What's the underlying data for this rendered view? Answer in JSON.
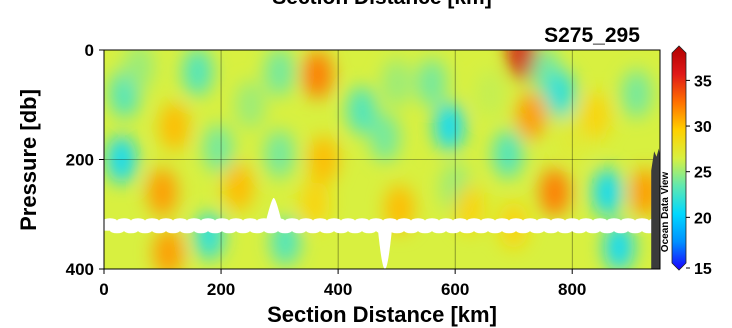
{
  "chart_data": {
    "type": "heatmap",
    "title_top": "Section Distance [km]",
    "title": "S275_295",
    "xlabel": "Section Distance [km]",
    "ylabel": "Pressure [db]",
    "xlim": [
      0,
      950
    ],
    "ylim": [
      0,
      400
    ],
    "y_inverted": true,
    "xticks": [
      0,
      200,
      400,
      600,
      800
    ],
    "yticks": [
      0,
      200,
      400
    ],
    "grid": true,
    "colorbar": {
      "min": 15,
      "max": 38,
      "ticks": [
        15,
        20,
        25,
        30,
        35
      ],
      "colors": [
        "#1a00ff",
        "#0090ff",
        "#00d8ff",
        "#60e8b0",
        "#d8f040",
        "#ffd000",
        "#ff7000",
        "#e01818",
        "#b00000"
      ]
    },
    "watermark": "Ocean Data View",
    "background_value": 26.5,
    "features": [
      {
        "x": 30,
        "p": 200,
        "value": 21
      },
      {
        "x": 35,
        "p": 80,
        "value": 23
      },
      {
        "x": 60,
        "p": 30,
        "value": 25
      },
      {
        "x": 100,
        "p": 260,
        "value": 31
      },
      {
        "x": 110,
        "p": 370,
        "value": 31
      },
      {
        "x": 120,
        "p": 140,
        "value": 30
      },
      {
        "x": 160,
        "p": 40,
        "value": 23
      },
      {
        "x": 180,
        "p": 340,
        "value": 22
      },
      {
        "x": 195,
        "p": 180,
        "value": 24
      },
      {
        "x": 230,
        "p": 250,
        "value": 30
      },
      {
        "x": 250,
        "p": 100,
        "value": 25
      },
      {
        "x": 300,
        "p": 190,
        "value": 24
      },
      {
        "x": 300,
        "p": 40,
        "value": 24
      },
      {
        "x": 310,
        "p": 350,
        "value": 23
      },
      {
        "x": 365,
        "p": 45,
        "value": 32
      },
      {
        "x": 360,
        "p": 280,
        "value": 29
      },
      {
        "x": 375,
        "p": 200,
        "value": 30
      },
      {
        "x": 440,
        "p": 110,
        "value": 23
      },
      {
        "x": 480,
        "p": 160,
        "value": 24
      },
      {
        "x": 500,
        "p": 60,
        "value": 25
      },
      {
        "x": 505,
        "p": 290,
        "value": 30
      },
      {
        "x": 560,
        "p": 60,
        "value": 24
      },
      {
        "x": 590,
        "p": 140,
        "value": 21
      },
      {
        "x": 600,
        "p": 250,
        "value": 25
      },
      {
        "x": 625,
        "p": 290,
        "value": 29
      },
      {
        "x": 660,
        "p": 80,
        "value": 26
      },
      {
        "x": 690,
        "p": 190,
        "value": 23
      },
      {
        "x": 700,
        "p": 320,
        "value": 29
      },
      {
        "x": 715,
        "p": 10,
        "value": 36
      },
      {
        "x": 730,
        "p": 120,
        "value": 31
      },
      {
        "x": 755,
        "p": 40,
        "value": 24
      },
      {
        "x": 770,
        "p": 260,
        "value": 32
      },
      {
        "x": 780,
        "p": 80,
        "value": 22
      },
      {
        "x": 800,
        "p": 160,
        "value": 27
      },
      {
        "x": 840,
        "p": 120,
        "value": 29
      },
      {
        "x": 860,
        "p": 260,
        "value": 21
      },
      {
        "x": 880,
        "p": 360,
        "value": 21
      },
      {
        "x": 910,
        "p": 80,
        "value": 24
      },
      {
        "x": 925,
        "p": 260,
        "value": 31
      }
    ],
    "no_data_band": {
      "p_top": 312,
      "p_bottom": 330
    },
    "no_data_spikes": [
      {
        "x": 290,
        "p_top": 270
      },
      {
        "x": 480,
        "p_top": 400
      }
    ],
    "bathymetry": {
      "color": "#3b3b3b",
      "points": [
        [
          935,
          400
        ],
        [
          935,
          220
        ],
        [
          940,
          185
        ],
        [
          944,
          195
        ],
        [
          948,
          180
        ],
        [
          952,
          210
        ],
        [
          960,
          200
        ],
        [
          960,
          400
        ]
      ]
    }
  }
}
